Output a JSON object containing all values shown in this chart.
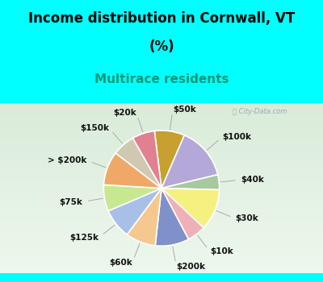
{
  "title_line1": "Income distribution in Cornwall, VT",
  "title_line2": "(%)",
  "subtitle": "Multirace residents",
  "title_fontsize": 12,
  "subtitle_fontsize": 11,
  "top_bg": "#00FFFF",
  "chart_bg_top": "#e0f5ee",
  "chart_bg_bottom": "#c8eedd",
  "watermark": "ⓘ City-Data.com",
  "slices": [
    {
      "label": "$50k",
      "value": 8,
      "color": "#c8a030"
    },
    {
      "label": "$100k",
      "value": 14,
      "color": "#b3a8d8"
    },
    {
      "label": "$40k",
      "value": 4,
      "color": "#a8c8a0"
    },
    {
      "label": "$30k",
      "value": 11,
      "color": "#f5f080"
    },
    {
      "label": "$10k",
      "value": 5,
      "color": "#f0b0b8"
    },
    {
      "label": "$200k",
      "value": 9,
      "color": "#8090c8"
    },
    {
      "label": "$60k",
      "value": 8,
      "color": "#f5c890"
    },
    {
      "label": "$125k",
      "value": 8,
      "color": "#a8c0e8"
    },
    {
      "label": "$75k",
      "value": 7,
      "color": "#c8e890"
    },
    {
      "label": "> $200k",
      "value": 9,
      "color": "#f0a868"
    },
    {
      "label": "$150k",
      "value": 6,
      "color": "#d0c8b0"
    },
    {
      "label": "$20k",
      "value": 6,
      "color": "#e08090"
    }
  ],
  "startangle": 97,
  "label_fontsize": 7.5,
  "label_color": "#111111",
  "line_color": "#aaaaaa",
  "border_color": "#00CCCC"
}
